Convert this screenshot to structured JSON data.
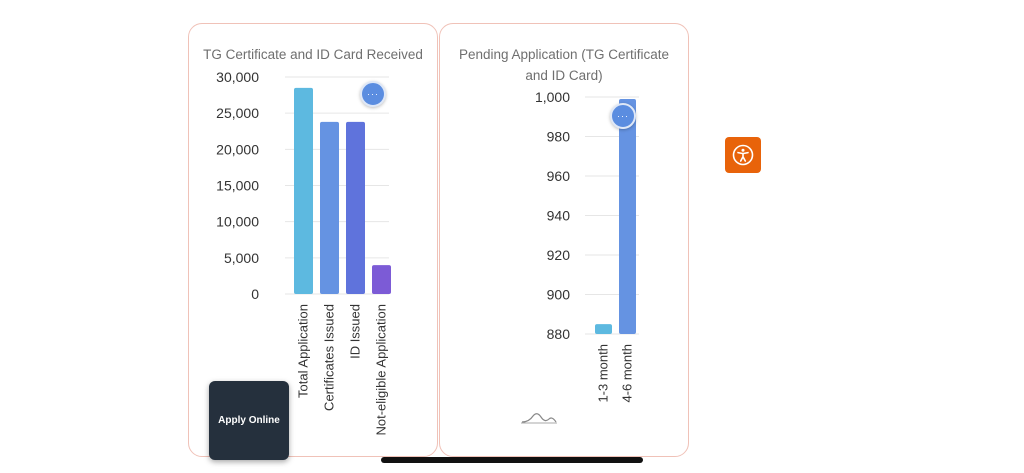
{
  "chart_data": [
    {
      "type": "bar",
      "title": "TG Certificate and ID Card Received",
      "categories": [
        "Total Application",
        "Certificates Issued",
        "ID Issued",
        "Not-eligible Application"
      ],
      "values": [
        28500,
        23800,
        23800,
        4000
      ],
      "colors": [
        "#5db9e0",
        "#6593e2",
        "#5f73dc",
        "#7c5bd6"
      ],
      "ylim": [
        0,
        30000
      ],
      "yticks": [
        0,
        5000,
        10000,
        15000,
        20000,
        25000,
        30000
      ],
      "ytick_labels": [
        "0",
        "5,000",
        "10,000",
        "15,000",
        "20,000",
        "25,000",
        "30,000"
      ],
      "grid": true,
      "xlabel": "",
      "ylabel": ""
    },
    {
      "type": "bar",
      "title": "Pending Application (TG Certificate and ID Card)",
      "categories": [
        "1-3 month",
        "4-6 month"
      ],
      "values": [
        885,
        999
      ],
      "colors": [
        "#5db9e0",
        "#6593e2"
      ],
      "ylim": [
        880,
        1000
      ],
      "yticks": [
        880,
        900,
        920,
        940,
        960,
        980,
        1000
      ],
      "ytick_labels": [
        "880",
        "900",
        "920",
        "940",
        "960",
        "980",
        "1,000"
      ],
      "grid": true,
      "xlabel": "",
      "ylabel": ""
    }
  ],
  "ui": {
    "apply_online_label": "Apply Online",
    "menu_button_glyph": "···",
    "accessibility_icon": "accessibility-icon",
    "accent_color": "#e8630a"
  }
}
